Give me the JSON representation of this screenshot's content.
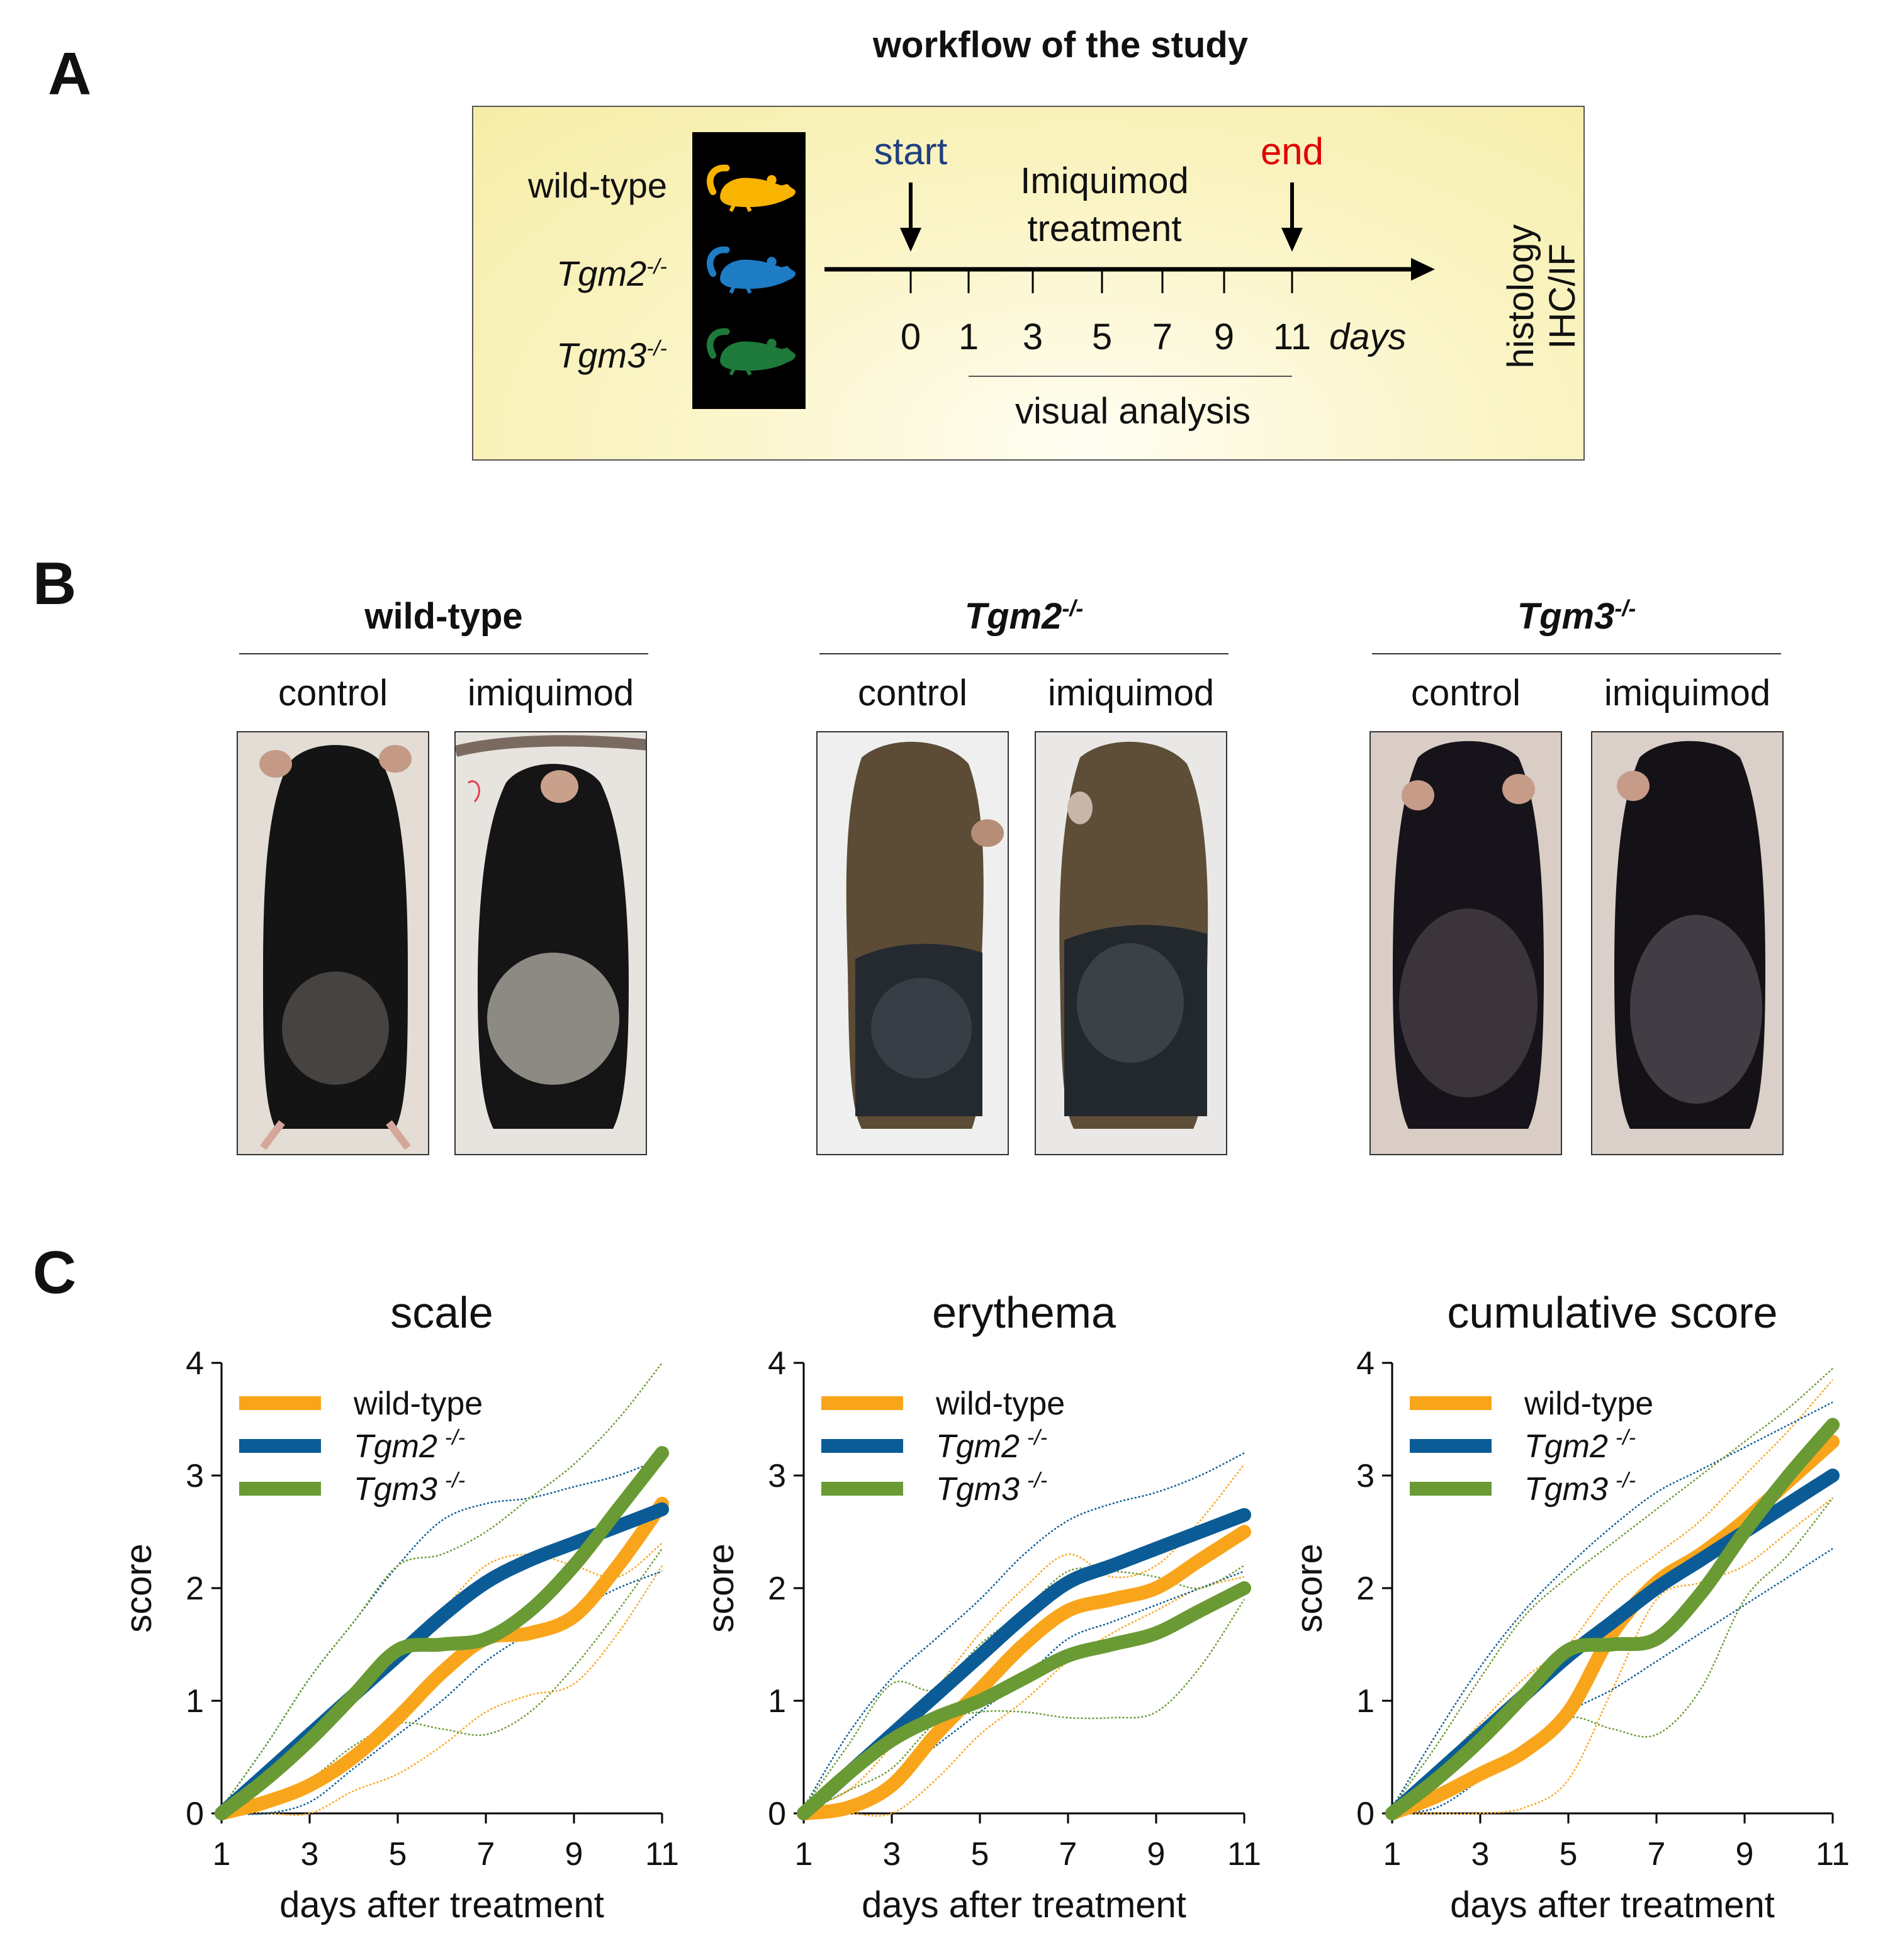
{
  "panel_a": {
    "letter": "A",
    "title": "workflow of the study",
    "genotypes": [
      {
        "name": "wild-type",
        "sup": "",
        "color": "#F8B400"
      },
      {
        "name": "Tgm2",
        "sup": "-/-",
        "color": "#1E7CC4"
      },
      {
        "name": "Tgm3",
        "sup": "-/-",
        "color": "#1E7A3A"
      }
    ],
    "start_label": "start",
    "end_label": "end",
    "treatment_line1": "Imiquimod",
    "treatment_line2": "treatment",
    "days": [
      "0",
      "1",
      "3",
      "5",
      "7",
      "9",
      "11"
    ],
    "days_unit": "days",
    "visual_analysis": "visual analysis",
    "histology_line1": "histology",
    "histology_line2": "IHC/IF",
    "start_color": "#1F3F7F",
    "end_color": "#E00000"
  },
  "panel_b": {
    "letter": "B",
    "groups": [
      {
        "name": "wild-type",
        "sup": "",
        "italic": false,
        "control": "control",
        "imiquimod": "imiquimod"
      },
      {
        "name": "Tgm2",
        "sup": "-/-",
        "italic": true,
        "control": "control",
        "imiquimod": "imiquimod"
      },
      {
        "name": "Tgm3",
        "sup": "-/-",
        "italic": true,
        "control": "control",
        "imiquimod": "imiquimod"
      }
    ]
  },
  "panel_c": {
    "letter": "C",
    "legend": [
      {
        "name": "wild-type",
        "sup": "",
        "color": "#F9A51B"
      },
      {
        "name": "Tgm2",
        "sup": "-/-",
        "color": "#0B5C96"
      },
      {
        "name": "Tgm3",
        "sup": "-/-",
        "color": "#6A9A34"
      }
    ]
  },
  "chart_data": [
    {
      "type": "line",
      "title": "scale",
      "xlabel": "days after treatment",
      "ylabel": "score",
      "xlim": [
        1,
        11
      ],
      "ylim": [
        0,
        4
      ],
      "xticks": [
        1,
        3,
        5,
        7,
        9,
        11
      ],
      "yticks": [
        0,
        1,
        2,
        3,
        4
      ],
      "series": [
        {
          "name": "wild-type",
          "color": "#F9A51B",
          "x": [
            1,
            2,
            3,
            4,
            5,
            6,
            7,
            8,
            9,
            10,
            11
          ],
          "mean": [
            0.0,
            0.1,
            0.25,
            0.5,
            0.85,
            1.25,
            1.55,
            1.6,
            1.75,
            2.2,
            2.75
          ],
          "upper": [
            0.05,
            0.3,
            0.6,
            1.0,
            1.4,
            1.8,
            2.2,
            2.3,
            2.2,
            2.1,
            2.4
          ],
          "lower": [
            0.0,
            0.0,
            0.0,
            0.2,
            0.35,
            0.6,
            0.9,
            1.05,
            1.15,
            1.6,
            2.2
          ]
        },
        {
          "name": "Tgm2",
          "sup": "-/-",
          "color": "#0B5C96",
          "x": [
            1,
            2,
            3,
            4,
            5,
            6,
            7,
            8,
            9,
            10,
            11
          ],
          "mean": [
            0.0,
            0.35,
            0.7,
            1.05,
            1.4,
            1.75,
            2.05,
            2.25,
            2.4,
            2.55,
            2.7
          ],
          "upper": [
            0.05,
            0.6,
            1.2,
            1.7,
            2.2,
            2.6,
            2.75,
            2.8,
            2.9,
            3.0,
            3.15
          ],
          "lower": [
            0.0,
            0.0,
            0.1,
            0.4,
            0.7,
            1.0,
            1.35,
            1.6,
            1.8,
            2.0,
            2.15
          ]
        },
        {
          "name": "Tgm3",
          "sup": "-/-",
          "color": "#6A9A34",
          "x": [
            1,
            2,
            3,
            4,
            5,
            6,
            7,
            8,
            9,
            10,
            11
          ],
          "mean": [
            0.0,
            0.3,
            0.65,
            1.05,
            1.45,
            1.5,
            1.55,
            1.8,
            2.2,
            2.7,
            3.2
          ],
          "upper": [
            0.05,
            0.6,
            1.2,
            1.7,
            2.2,
            2.3,
            2.5,
            2.8,
            3.1,
            3.5,
            4.0
          ],
          "lower": [
            0.0,
            0.1,
            0.3,
            0.6,
            0.8,
            0.75,
            0.7,
            0.9,
            1.3,
            1.8,
            2.35
          ]
        }
      ]
    },
    {
      "type": "line",
      "title": "erythema",
      "xlabel": "days after treatment",
      "ylabel": "score",
      "xlim": [
        1,
        11
      ],
      "ylim": [
        0,
        4
      ],
      "xticks": [
        1,
        3,
        5,
        7,
        9,
        11
      ],
      "yticks": [
        0,
        1,
        2,
        3,
        4
      ],
      "series": [
        {
          "name": "wild-type",
          "color": "#F9A51B",
          "x": [
            1,
            2,
            3,
            4,
            5,
            6,
            7,
            8,
            9,
            10,
            11
          ],
          "mean": [
            0.0,
            0.05,
            0.25,
            0.7,
            1.1,
            1.5,
            1.8,
            1.9,
            2.0,
            2.25,
            2.5
          ],
          "upper": [
            0.05,
            0.2,
            0.6,
            1.1,
            1.6,
            2.0,
            2.3,
            2.1,
            2.2,
            2.6,
            3.1
          ],
          "lower": [
            0.0,
            0.0,
            0.0,
            0.3,
            0.7,
            1.0,
            1.35,
            1.6,
            1.8,
            2.0,
            2.1
          ]
        },
        {
          "name": "Tgm2",
          "sup": "-/-",
          "color": "#0B5C96",
          "x": [
            1,
            2,
            3,
            4,
            5,
            6,
            7,
            8,
            9,
            10,
            11
          ],
          "mean": [
            0.0,
            0.35,
            0.7,
            1.05,
            1.4,
            1.75,
            2.05,
            2.2,
            2.35,
            2.5,
            2.65
          ],
          "upper": [
            0.05,
            0.7,
            1.2,
            1.55,
            1.9,
            2.3,
            2.6,
            2.75,
            2.85,
            3.0,
            3.2
          ],
          "lower": [
            0.0,
            0.1,
            0.3,
            0.6,
            0.9,
            1.2,
            1.55,
            1.7,
            1.85,
            2.0,
            2.15
          ]
        },
        {
          "name": "Tgm3",
          "sup": "-/-",
          "color": "#6A9A34",
          "x": [
            1,
            2,
            3,
            4,
            5,
            6,
            7,
            8,
            9,
            10,
            11
          ],
          "mean": [
            0.0,
            0.35,
            0.65,
            0.85,
            1.0,
            1.2,
            1.4,
            1.5,
            1.6,
            1.8,
            2.0
          ],
          "upper": [
            0.05,
            0.6,
            1.15,
            1.1,
            1.5,
            1.8,
            2.15,
            2.15,
            2.1,
            2.0,
            2.2
          ],
          "lower": [
            0.0,
            0.2,
            0.4,
            0.8,
            0.9,
            0.9,
            0.85,
            0.85,
            0.9,
            1.3,
            1.9
          ]
        }
      ]
    },
    {
      "type": "line",
      "title": "cumulative score",
      "xlabel": "days after treatment",
      "ylabel": "score",
      "xlim": [
        1,
        11
      ],
      "ylim": [
        0,
        4
      ],
      "xticks": [
        1,
        3,
        5,
        7,
        9,
        11
      ],
      "yticks": [
        0,
        1,
        2,
        3,
        4
      ],
      "series": [
        {
          "name": "wild-type",
          "color": "#F9A51B",
          "x": [
            1,
            2,
            3,
            4,
            5,
            6,
            7,
            8,
            9,
            10,
            11
          ],
          "mean": [
            0.0,
            0.15,
            0.35,
            0.55,
            0.9,
            1.6,
            2.05,
            2.3,
            2.6,
            2.95,
            3.3
          ],
          "upper": [
            0.05,
            0.4,
            0.8,
            1.2,
            1.5,
            2.0,
            2.3,
            2.6,
            3.0,
            3.4,
            3.85
          ],
          "lower": [
            0.0,
            0.0,
            0.0,
            0.05,
            0.3,
            1.1,
            1.9,
            2.05,
            2.2,
            2.5,
            2.8
          ]
        },
        {
          "name": "Tgm2",
          "sup": "-/-",
          "color": "#0B5C96",
          "x": [
            1,
            2,
            3,
            4,
            5,
            6,
            7,
            8,
            9,
            10,
            11
          ],
          "mean": [
            0.0,
            0.35,
            0.7,
            1.05,
            1.4,
            1.7,
            2.0,
            2.25,
            2.5,
            2.75,
            3.0
          ],
          "upper": [
            0.05,
            0.7,
            1.3,
            1.8,
            2.2,
            2.55,
            2.85,
            3.05,
            3.25,
            3.45,
            3.65
          ],
          "lower": [
            0.0,
            0.05,
            0.3,
            0.6,
            0.9,
            1.1,
            1.35,
            1.6,
            1.85,
            2.1,
            2.35
          ]
        },
        {
          "name": "Tgm3",
          "sup": "-/-",
          "color": "#6A9A34",
          "x": [
            1,
            2,
            3,
            4,
            5,
            6,
            7,
            8,
            9,
            10,
            11
          ],
          "mean": [
            0.0,
            0.3,
            0.65,
            1.05,
            1.45,
            1.5,
            1.55,
            1.95,
            2.5,
            3.0,
            3.45
          ],
          "upper": [
            0.05,
            0.6,
            1.2,
            1.75,
            2.1,
            2.4,
            2.7,
            3.0,
            3.3,
            3.6,
            3.95
          ],
          "lower": [
            0.0,
            0.1,
            0.3,
            0.6,
            0.85,
            0.75,
            0.7,
            1.1,
            1.9,
            2.3,
            2.8
          ]
        }
      ]
    }
  ]
}
